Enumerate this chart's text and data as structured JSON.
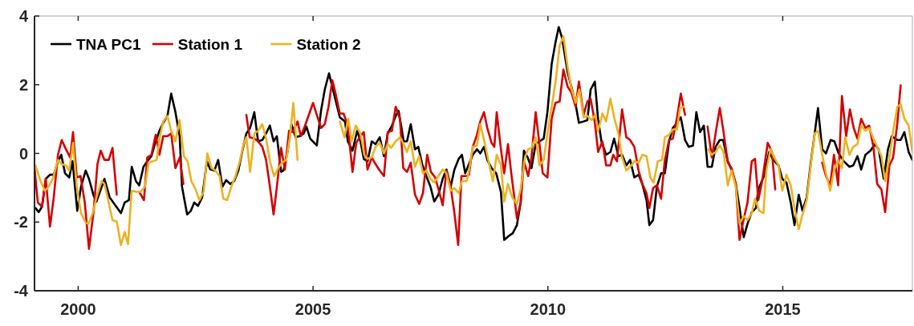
{
  "chart_data": {
    "type": "line",
    "xlim": [
      1999.07,
      2017.76
    ],
    "xticks": [
      2000,
      2005,
      2010,
      2015
    ],
    "ylim": [
      -4,
      4
    ],
    "yticks": [
      -4,
      -2,
      0,
      2,
      4
    ],
    "grid": false,
    "legend": "top left",
    "line_style": "solid",
    "series": [
      {
        "name": "TNA PC1",
        "color": "#000000",
        "x": [
          1999.09,
          1999.16,
          1999.23,
          1999.31,
          1999.4,
          1999.48,
          1999.57,
          1999.64,
          1999.72,
          1999.81,
          1999.88,
          1999.98,
          2000.06,
          2000.16,
          2000.23,
          2000.33,
          2000.39,
          2000.48,
          2000.56,
          2000.67,
          2000.79,
          2000.91,
          2000.99,
          2001.08,
          2001.14,
          2001.23,
          2001.3,
          2001.39,
          2001.47,
          2001.56,
          2001.64,
          2001.73,
          2001.81,
          2001.9,
          2001.98,
          2002.07,
          2002.16,
          2002.21,
          2002.32,
          2002.4,
          2002.47,
          2002.55,
          2002.64,
          2002.74,
          2002.81,
          2002.9,
          2002.98,
          2003.07,
          2003.15,
          2003.24,
          2003.32,
          2003.41,
          2003.49,
          2003.58,
          2003.66,
          2003.75,
          2003.83,
          2003.92,
          2004,
          2004.08,
          2004.16,
          2004.23,
          2004.32,
          2004.37,
          2004.46,
          2004.54,
          2004.63,
          2004.71,
          2004.8,
          2004.86,
          2004.94,
          2005.08,
          2005.17,
          2005.25,
          2005.34,
          2005.43,
          2005.57,
          2005.68,
          2005.74,
          2005.84,
          2005.94,
          2006.01,
          2006.08,
          2006.16,
          2006.25,
          2006.33,
          2006.42,
          2006.51,
          2006.59,
          2006.68,
          2006.76,
          2006.82,
          2006.87,
          2006.93,
          2007,
          2007.08,
          2007.17,
          2007.24,
          2007.33,
          2007.41,
          2007.5,
          2007.58,
          2007.67,
          2007.76,
          2007.84,
          2007.93,
          2008.01,
          2008.1,
          2008.17,
          2008.24,
          2008.32,
          2008.4,
          2008.49,
          2008.56,
          2008.64,
          2008.71,
          2008.8,
          2008.9,
          2009,
          2009.07,
          2009.17,
          2009.25,
          2009.34,
          2009.42,
          2009.49,
          2009.57,
          2009.65,
          2009.74,
          2009.82,
          2009.91,
          2009.99,
          2010.08,
          2010.16,
          2010.23,
          2010.3,
          2010.42,
          2010.5,
          2010.59,
          2010.66,
          2010.76,
          2010.84,
          2010.91,
          2011,
          2011.07,
          2011.14,
          2011.24,
          2011.33,
          2011.41,
          2011.5,
          2011.58,
          2011.67,
          2011.75,
          2011.84,
          2011.93,
          2012.01,
          2012.1,
          2012.16,
          2012.24,
          2012.32,
          2012.41,
          2012.49,
          2012.58,
          2012.66,
          2012.75,
          2012.83,
          2012.92,
          2013,
          2013.09,
          2013.16,
          2013.24,
          2013.32,
          2013.4,
          2013.49,
          2013.57,
          2013.66,
          2013.73,
          2013.83,
          2013.91,
          2014,
          2014.08,
          2014.17,
          2014.25,
          2014.34,
          2014.43,
          2014.48,
          2014.6,
          2014.71,
          2014.8,
          2014.91,
          2014.99,
          2015.08,
          2015.17,
          2015.25,
          2015.34,
          2015.42,
          2015.51,
          2015.59,
          2015.68,
          2015.75,
          2015.84,
          2015.92,
          2016.02,
          2016.1,
          2016.19,
          2016.3,
          2016.42,
          2016.5,
          2016.59,
          2016.67,
          2016.76,
          2016.87,
          2016.96,
          2017.04,
          2017.15,
          2017.24,
          2017.32,
          2017.44,
          2017.51,
          2017.59,
          2017.68,
          2017.76
        ],
        "values": [
          -1.59,
          -1.71,
          -1.55,
          -0.74,
          -0.62,
          -0.62,
          -0.23,
          -0.04,
          -0.58,
          -0.7,
          -0.23,
          -1.67,
          -0.97,
          -0.5,
          -0.74,
          -1.24,
          -1.4,
          -1.05,
          -0.74,
          -1.28,
          -1.51,
          -1.74,
          -1.43,
          -1.36,
          -0.39,
          -0.81,
          -0.93,
          -0.39,
          -0.23,
          -0.08,
          0.31,
          0.66,
          0.89,
          1.09,
          1.74,
          1.2,
          0.5,
          -0.97,
          -1.78,
          -1.67,
          -1.43,
          -1.53,
          -1.28,
          -0.23,
          -0.46,
          -0.5,
          -0.19,
          -0.97,
          -0.78,
          -0.89,
          -0.81,
          -0.5,
          0.04,
          0.58,
          0.74,
          1.2,
          0.35,
          0.39,
          0.58,
          0.81,
          0.35,
          0.5,
          -0.54,
          -0.5,
          0.08,
          0.85,
          0.47,
          0.5,
          0.58,
          0.78,
          0.43,
          0.23,
          1.24,
          1.86,
          2.33,
          1.82,
          1.05,
          0.93,
          0.35,
          0.08,
          0.66,
          0.35,
          -0.16,
          -0.23,
          0.35,
          0.27,
          0.47,
          -0.08,
          0.58,
          0.81,
          1.09,
          1.24,
          0.85,
          0.35,
          0.35,
          0.85,
          0.12,
          0.19,
          -0.35,
          -0.66,
          -0.97,
          -1.4,
          -1.2,
          -0.74,
          -0.47,
          -0.97,
          -0.47,
          -0.16,
          -0.04,
          -0.58,
          -0.31,
          -0.04,
          0.12,
          0,
          0.19,
          -0.19,
          -0.43,
          -0.58,
          -1.12,
          -2.52,
          -2.4,
          -2.33,
          -2.09,
          -1.43,
          0.08,
          -0.12,
          -0.43,
          0.27,
          0.35,
          0.43,
          1.2,
          2.6,
          3.22,
          3.68,
          3.37,
          2.36,
          1.94,
          1.43,
          0.89,
          0.93,
          0.97,
          1.86,
          2.09,
          0.97,
          0.35,
          -0.04,
          0.04,
          0.43,
          -0.08,
          -0.04,
          -0.35,
          -0.19,
          -0.7,
          -0.62,
          -0.89,
          -1.36,
          -2.09,
          -1.94,
          -0.97,
          -0.58,
          -0.58,
          0.35,
          0.74,
          0.89,
          1.05,
          0.39,
          0.19,
          0.23,
          1.2,
          0.62,
          0.81,
          -0.39,
          -0.39,
          0.19,
          0.39,
          0.39,
          -0.23,
          -0.47,
          -0.89,
          -1.59,
          -2.44,
          -2.05,
          -1.71,
          -1.59,
          -1.05,
          -0.66,
          0.04,
          -0.19,
          -0.35,
          -0.74,
          -0.85,
          -1.43,
          -2.09,
          -1.2,
          -1.67,
          -1.28,
          -0.35,
          0.58,
          1.32,
          0.12,
          0,
          0.39,
          0.35,
          0,
          -0.23,
          -0.39,
          -0.35,
          -0.08,
          -0.47,
          -0.04,
          0.08,
          0.27,
          0.12,
          -0.74,
          0.12,
          0.5,
          0.39,
          0.39,
          0.62,
          0.04,
          -0.19
        ]
      },
      {
        "name": "Station 1",
        "color": "#d40000",
        "x": [
          1999.07,
          1999.14,
          1999.23,
          1999.31,
          1999.4,
          1999.48,
          1999.57,
          1999.65,
          1999.74,
          1999.83,
          1999.89,
          1999.97,
          2000.05,
          2000.14,
          2000.23,
          2000.33,
          2000.41,
          2000.48,
          2000.56,
          2000.65,
          2000.73,
          2000.82,
          2000.95,
          2001.3,
          2001.4,
          2001.47,
          2001.56,
          2001.65,
          2001.73,
          2001.81,
          2001.9,
          2001.98,
          2002.07,
          2002.16,
          2002.24,
          2003,
          2003.58,
          2003.65,
          2003.75,
          2003.83,
          2003.92,
          2004,
          2004.09,
          2004.16,
          2004.23,
          2004.32,
          2004.4,
          2004.49,
          2004.57,
          2004.67,
          2004.74,
          2004.83,
          2004.91,
          2005,
          2005.08,
          2005.17,
          2005.25,
          2005.33,
          2005.41,
          2005.48,
          2005.57,
          2005.65,
          2005.74,
          2005.84,
          2005.92,
          2006.01,
          2006.08,
          2006.16,
          2006.25,
          2006.33,
          2006.42,
          2006.51,
          2006.59,
          2006.68,
          2006.76,
          2006.85,
          2006.92,
          2007,
          2007.08,
          2007.17,
          2007.26,
          2007.34,
          2007.43,
          2007.51,
          2007.6,
          2007.68,
          2007.76,
          2007.84,
          2007.93,
          2008.01,
          2008.09,
          2008.16,
          2008.27,
          2008.32,
          2008.4,
          2008.49,
          2008.56,
          2008.64,
          2008.71,
          2008.8,
          2008.86,
          2008.91,
          2009,
          2009.07,
          2009.15,
          2009.22,
          2009.3,
          2009.34,
          2009.42,
          2009.49,
          2009.58,
          2009.65,
          2009.74,
          2009.82,
          2009.89,
          2009.99,
          2010.08,
          2010.16,
          2010.25,
          2010.33,
          2010.42,
          2010.5,
          2010.59,
          2010.66,
          2010.76,
          2010.84,
          2010.91,
          2011,
          2011.07,
          2011.16,
          2011.24,
          2011.33,
          2011.39,
          2011.47,
          2011.58,
          2011.67,
          2011.75,
          2011.84,
          2011.93,
          2012.01,
          2012.1,
          2012.16,
          2012.24,
          2012.32,
          2012.41,
          2012.49,
          2012.58,
          2012.66,
          2012.75,
          2012.83,
          2012.92,
          2013.1,
          2013.4,
          2013.49,
          2013.57,
          2013.66,
          2013.74,
          2013.83,
          2013.91,
          2014,
          2014.08,
          2014.17,
          2014.25,
          2014.34,
          2014.41,
          2014.48,
          2014.57,
          2014.68,
          2014.77,
          2014.84,
          2015.3,
          2015.84,
          2015.92,
          2016.01,
          2016.09,
          2016.18,
          2016.26,
          2016.35,
          2016.43,
          2016.51,
          2016.59,
          2016.67,
          2016.76,
          2016.84,
          2016.93,
          2017.01,
          2017.1,
          2017.18,
          2017.27,
          2017.35,
          2017.44,
          2017.51
        ],
        "values": [
          -0.43,
          -1.43,
          -1.55,
          -0.74,
          -2.13,
          -1.28,
          -0.04,
          0.39,
          0.12,
          -0.12,
          0.62,
          -0.7,
          -0.66,
          -1.43,
          -2.78,
          -1.67,
          -0.31,
          0.08,
          -0.19,
          -0.19,
          0.16,
          -1.2,
          null,
          -1.12,
          -1.36,
          -0.12,
          -0.04,
          0.54,
          -0.04,
          0.5,
          0.5,
          0.58,
          -0.43,
          -0.12,
          -0.89,
          null,
          1.12,
          0.47,
          0.43,
          0.35,
          0.19,
          -0.19,
          -1.05,
          -1.78,
          -0.97,
          0.16,
          -0.47,
          0.66,
          0.62,
          0.93,
          0.5,
          0.81,
          1.12,
          1.47,
          1.12,
          0.74,
          0.85,
          1.36,
          2.13,
          1.74,
          1.16,
          1.16,
          0.81,
          -0.54,
          0.31,
          0.5,
          0.62,
          -0.47,
          -0.12,
          -0.31,
          -0.5,
          -0.66,
          0.62,
          0.66,
          1.36,
          1.01,
          -0.43,
          -0.54,
          -0.27,
          -1.2,
          -1.47,
          -1.16,
          -0.04,
          -0.54,
          -0.7,
          -1.09,
          -1.51,
          -0.5,
          -0.97,
          -1.74,
          -2.67,
          -0.66,
          -0.66,
          -0.62,
          0.19,
          0.54,
          0.93,
          1.2,
          0.74,
          0.31,
          0.19,
          1.2,
          0.12,
          -0.58,
          0.27,
          -0.58,
          -1.43,
          -1.9,
          -1.43,
          -0.23,
          -0.66,
          -0.12,
          1.2,
          0.27,
          -0.58,
          -0.7,
          1.01,
          1.47,
          1.51,
          2.44,
          1.94,
          1.78,
          1.36,
          2.09,
          1.12,
          1.51,
          1.59,
          0.89,
          0.04,
          0.35,
          -0.35,
          -0.35,
          -0.04,
          -0.23,
          1.28,
          0.47,
          0.39,
          0.19,
          -0.5,
          -0.89,
          -1.16,
          -1.59,
          -1.01,
          -0.93,
          -1.32,
          -0.19,
          0.39,
          0.43,
          1.05,
          1.74,
          1.12,
          null,
          0.78,
          -0.12,
          0.58,
          1.32,
          0.62,
          -0.27,
          -0.43,
          -0.89,
          -2.52,
          -1.9,
          -1.43,
          -0.23,
          -0.16,
          -1.36,
          -0.74,
          0.31,
          0.04,
          -1.05,
          null,
          -0.27,
          -0.66,
          -0.93,
          -0.04,
          -0.93,
          1.67,
          0.5,
          1.28,
          0.74,
          0.43,
          1.01,
          0.74,
          0.81,
          0.19,
          -0.89,
          -1.05,
          -1.71,
          -0.35,
          -0.12,
          0.89,
          1.98
        ]
      },
      {
        "name": "Station 2",
        "color": "#edb120",
        "x": [
          1999.09,
          1999.2,
          1999.29,
          1999.37,
          1999.46,
          1999.57,
          1999.65,
          1999.74,
          1999.81,
          1999.89,
          1999.97,
          2000.06,
          2000.16,
          2000.22,
          2000.31,
          2000.39,
          2000.5,
          2000.56,
          2000.65,
          2000.73,
          2000.82,
          2000.91,
          2000.99,
          2001.06,
          2001.14,
          2001.25,
          2001.33,
          2001.42,
          2001.5,
          2001.59,
          2001.67,
          2001.73,
          2001.81,
          2001.9,
          2001.98,
          2002.07,
          2002.16,
          2002.25,
          2002.33,
          2002.41,
          2002.5,
          2002.58,
          2002.67,
          2002.75,
          2002.84,
          2002.92,
          2003.01,
          2003.09,
          2003.17,
          2003.26,
          2003.35,
          2003.44,
          2003.52,
          2003.58,
          2003.66,
          2003.75,
          2003.83,
          2003.92,
          2004,
          2004.09,
          2004.17,
          2004.26,
          2004.34,
          2004.43,
          2004.51,
          2004.58,
          2004.67,
          2004.9,
          2005.57,
          2005.67,
          2005.75,
          2005.82,
          2005.91,
          2006.01,
          2006.09,
          2006.16,
          2006.25,
          2006.33,
          2006.42,
          2006.51,
          2006.59,
          2006.66,
          2006.76,
          2006.85,
          2006.93,
          2007,
          2007.08,
          2007.17,
          2007.26,
          2007.34,
          2007.41,
          2007.5,
          2007.58,
          2007.67,
          2007.76,
          2007.84,
          2007.93,
          2008.01,
          2008.1,
          2008.17,
          2008.27,
          2008.32,
          2008.4,
          2008.49,
          2008.56,
          2008.64,
          2008.73,
          2008.83,
          2008.91,
          2009,
          2009.07,
          2009.15,
          2009.24,
          2009.34,
          2009.42,
          2009.51,
          2009.58,
          2009.65,
          2009.74,
          2009.82,
          2009.91,
          2009.99,
          2010.08,
          2010.16,
          2010.25,
          2010.33,
          2010.42,
          2010.5,
          2010.59,
          2010.67,
          2010.76,
          2010.84,
          2010.93,
          2011.01,
          2011.07,
          2011.16,
          2011.24,
          2011.33,
          2011.41,
          2011.5,
          2011.58,
          2011.67,
          2011.75,
          2011.84,
          2011.93,
          2012.01,
          2012.1,
          2012.18,
          2012.25,
          2012.34,
          2012.43,
          2012.49,
          2012.58,
          2012.66,
          2012.75,
          2012.81,
          2012.89,
          2013.1,
          2013.41,
          2013.49,
          2013.57,
          2013.66,
          2013.74,
          2013.83,
          2013.91,
          2014,
          2014.08,
          2014.17,
          2014.25,
          2014.34,
          2014.41,
          2014.5,
          2014.59,
          2014.65,
          2014.74,
          2014.82,
          2014.91,
          2014.99,
          2015.08,
          2015.17,
          2015.25,
          2015.34,
          2015.42,
          2015.51,
          2015.59,
          2015.68,
          2015.75,
          2015.84,
          2015.92,
          2016.01,
          2016.09,
          2016.18,
          2016.26,
          2016.33,
          2016.42,
          2016.5,
          2016.59,
          2016.67,
          2016.76,
          2016.84,
          2016.93,
          2017.01,
          2017.1,
          2017.18,
          2017.27,
          2017.35,
          2017.44,
          2017.51,
          2017.59,
          2017.68,
          2017.76
        ],
        "values": [
          -0.35,
          -0.81,
          -1.09,
          -0.97,
          -0.74,
          -0.19,
          -0.31,
          -0.35,
          -0.5,
          0.31,
          -0.97,
          -1.74,
          -2.02,
          -2.05,
          -1.74,
          -1.28,
          -0.81,
          -0.89,
          -1.43,
          -1.94,
          -1.98,
          -2.67,
          -2.29,
          -2.64,
          -1.09,
          -1.12,
          -1.12,
          -0.97,
          -0.27,
          -0.23,
          -0.19,
          0.43,
          0.93,
          1.09,
          0.66,
          0.35,
          0.97,
          -0.08,
          -0.23,
          -0.81,
          -1.05,
          -1.36,
          -1.12,
          0,
          -0.43,
          -0.5,
          -0.66,
          -1.32,
          -1.36,
          -0.97,
          -0.66,
          -0.23,
          0.27,
          0.47,
          -0.54,
          0.58,
          0.66,
          0.85,
          0.43,
          -0.27,
          -0.66,
          -0.43,
          -0.27,
          -0.19,
          0.5,
          1.47,
          -0.19,
          null,
          0.93,
          0.47,
          1.01,
          0.35,
          0.81,
          0.58,
          -0.04,
          -0.16,
          -0.12,
          0.19,
          0.31,
          0,
          0.27,
          0.16,
          0.35,
          0.47,
          0.27,
          0.04,
          0.35,
          -0.39,
          -0.08,
          -0.58,
          -0.5,
          -0.74,
          -0.85,
          -0.66,
          -0.47,
          -0.58,
          -1.09,
          -1.01,
          -1.16,
          -0.81,
          -0.81,
          -0.5,
          0.19,
          0.23,
          0.85,
          0.39,
          -0.19,
          -0.81,
          -0.04,
          -0.35,
          -1.4,
          -0.89,
          -1.28,
          -1.47,
          -1.05,
          -0.12,
          0.12,
          0.16,
          0.47,
          -0.35,
          -0.19,
          0.58,
          1.36,
          2.05,
          3.14,
          3.41,
          2.52,
          1.9,
          1.47,
          1.86,
          1.05,
          1.09,
          0.97,
          1.12,
          0.66,
          1.16,
          0.93,
          1.59,
          1.05,
          0.58,
          -0.12,
          -0.5,
          -0.39,
          -0.23,
          -0.27,
          -0.04,
          -0.08,
          -0.7,
          -0.85,
          -0.23,
          -0.19,
          0.47,
          0.54,
          0.7,
          0.7,
          1.32,
          1.36,
          null,
          0.12,
          -0.04,
          0.04,
          0.23,
          0.04,
          -0.93,
          -0.5,
          -0.97,
          -2.05,
          -1.82,
          -1.94,
          -1.74,
          -1.32,
          -1.67,
          -1.74,
          -0.5,
          0.12,
          -0.12,
          -0.35,
          -1.09,
          -0.62,
          -0.93,
          -1.59,
          -2.21,
          -1.78,
          -1.36,
          -0.43,
          0.58,
          0.66,
          -0.04,
          -0.58,
          -1.09,
          -0.5,
          -0.19,
          -0.43,
          0.47,
          -0.04,
          0.19,
          0.27,
          0.81,
          0.66,
          0.74,
          0.43,
          0.19,
          -0.08,
          -0.81,
          -0.12,
          0.66,
          1.36,
          1.43,
          1.01,
          0.81,
          0.04
        ]
      }
    ]
  }
}
